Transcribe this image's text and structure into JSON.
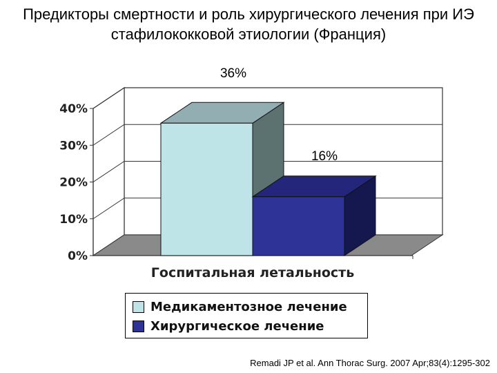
{
  "title": {
    "line1": "Предикторы смертности и роль хирургического лечения при ИЭ",
    "line2": "стафилококковой этиологии (Франция)"
  },
  "citation": "Remadi JP et al. Ann Thorac Surg. 2007 Apr;83(4):1295-302",
  "colors": {
    "series1_front": "#bfe4e8",
    "series1_top": "#93aeb2",
    "series1_side": "#5c7270",
    "series2_front": "#2e3397",
    "series2_top": "#23267a",
    "series2_side": "#15174f",
    "floor": "#8a8a8a"
  },
  "chart_data": {
    "type": "bar",
    "categories": [
      "Госпитальная летальность"
    ],
    "xlabel": "Госпитальная летальность",
    "ylabel": "",
    "ylim": [
      0,
      40
    ],
    "yticks": [
      "0%",
      "10%",
      "20%",
      "30%",
      "40%"
    ],
    "grid": true,
    "legend_position": "bottom",
    "series": [
      {
        "name": "Медикаментозное лечение",
        "values": [
          36
        ],
        "data_label": "36%"
      },
      {
        "name": "Хирургическое лечение",
        "values": [
          16
        ],
        "data_label": "16%"
      }
    ]
  }
}
